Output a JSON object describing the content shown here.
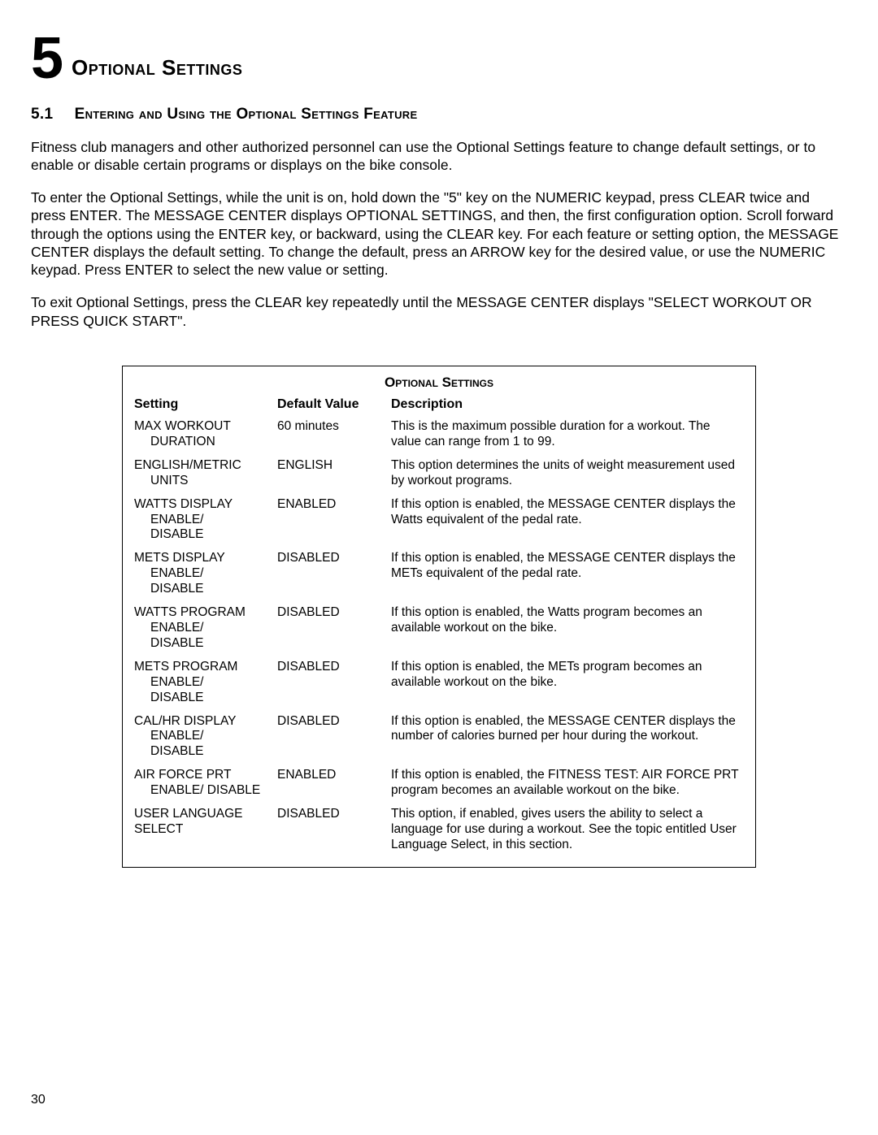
{
  "chapter": {
    "number": "5",
    "title": "Optional Settings"
  },
  "section": {
    "number": "5.1",
    "title": "Entering and Using the Optional Settings Feature"
  },
  "paragraphs": [
    "Fitness club managers and other authorized personnel can use the Optional Settings feature to change default settings, or to enable or disable certain programs or displays on the bike console.",
    "To enter the Optional Settings, while the unit is on, hold down the \"5\" key on the NUMERIC keypad, press CLEAR twice and press ENTER. The MESSAGE CENTER displays OPTIONAL SETTINGS, and then, the first configuration option. Scroll forward through the options using the ENTER key, or backward, using the  CLEAR key. For each feature or setting option, the MESSAGE CENTER displays the default setting. To change the default, press an ARROW key for the desired value, or use the NUMERIC keypad. Press ENTER to select the new value or setting.",
    "To exit Optional Settings, press the CLEAR key repeatedly until the MESSAGE CENTER displays \"SELECT WORKOUT OR PRESS QUICK START\"."
  ],
  "table": {
    "title": "Optional Settings",
    "headers": {
      "setting": "Setting",
      "default": "Default Value",
      "description": "Description"
    },
    "rows": [
      {
        "setting_main": "MAX WORKOUT",
        "setting_sub": "DURATION",
        "default": "60 minutes",
        "description": "This is the maximum possible duration for a workout. The value can range from 1 to 99."
      },
      {
        "setting_main": "ENGLISH/METRIC",
        "setting_sub": "UNITS",
        "default": "ENGLISH",
        "description": "This option determines the units of weight measurement used by workout programs."
      },
      {
        "setting_main": "WATTS DISPLAY",
        "setting_sub": "ENABLE/\nDISABLE",
        "default": "ENABLED",
        "description": "If this option is enabled, the MESSAGE CENTER displays the Watts equivalent of the pedal rate."
      },
      {
        "setting_main": "METS DISPLAY",
        "setting_sub": "ENABLE/\nDISABLE",
        "default": "DISABLED",
        "description": "If this option is enabled, the MESSAGE CENTER displays the METs equivalent of the pedal rate."
      },
      {
        "setting_main": "WATTS PROGRAM",
        "setting_sub": "ENABLE/\nDISABLE",
        "default": "DISABLED",
        "description": "If this option is enabled, the Watts program becomes an available workout on the bike."
      },
      {
        "setting_main": "METS PROGRAM",
        "setting_sub": "ENABLE/\nDISABLE",
        "default": "DISABLED",
        "description": "If this option is enabled, the METs program becomes an available workout on the bike."
      },
      {
        "setting_main": "CAL/HR DISPLAY",
        "setting_sub": "ENABLE/\nDISABLE",
        "default": "DISABLED",
        "description": "If this option is enabled, the MESSAGE CENTER displays the number of calories burned per hour during the workout."
      },
      {
        "setting_main": "AIR FORCE PRT",
        "setting_sub": "ENABLE/ DISABLE",
        "default": "ENABLED",
        "description": "If this option is enabled, the FITNESS TEST: AIR FORCE PRT program becomes an available workout on the bike."
      },
      {
        "setting_main": "USER LANGUAGE SELECT",
        "setting_sub": "",
        "default": "DISABLED",
        "description": "This option, if enabled, gives users the ability to select a language for use during a workout. See the topic entitled User Language Select, in this section."
      }
    ]
  },
  "page_number": "30"
}
